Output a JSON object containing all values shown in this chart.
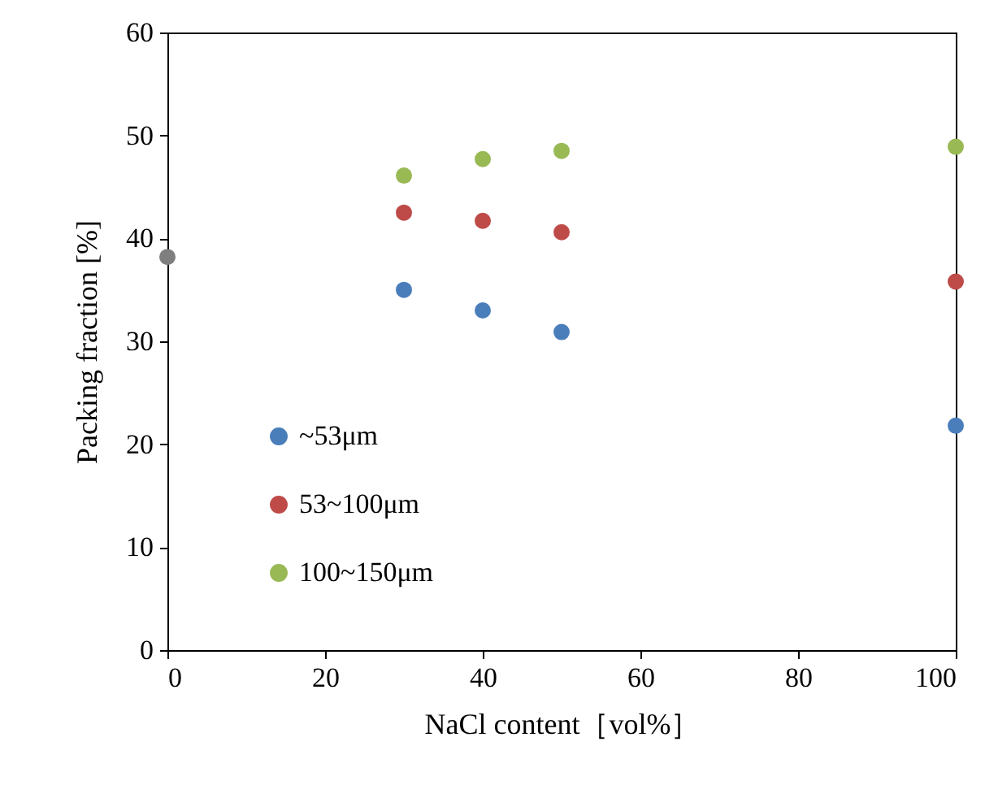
{
  "chart_data": {
    "type": "scatter",
    "xlabel": "NaCl content［vol%］",
    "ylabel": "Packing fraction [%]",
    "xlim": [
      0,
      100
    ],
    "xticks": [
      0,
      20,
      40,
      60,
      80,
      100
    ],
    "ylim": [
      0,
      60
    ],
    "yticks": [
      0,
      10,
      20,
      30,
      40,
      50,
      60
    ],
    "series": [
      {
        "name": "~53μm",
        "color": "#4a7ebb",
        "x": [
          30,
          40,
          50,
          100
        ],
        "values": [
          35.0,
          33.0,
          30.9,
          21.8
        ]
      },
      {
        "name": "53~100μm",
        "color": "#be4b48",
        "x": [
          30,
          40,
          50,
          100
        ],
        "values": [
          42.5,
          41.7,
          40.6,
          35.8
        ]
      },
      {
        "name": "100~150μm",
        "color": "#98b954",
        "x": [
          30,
          40,
          50,
          100
        ],
        "values": [
          46.1,
          47.7,
          48.5,
          48.9
        ]
      },
      {
        "color": "#7f7f7f",
        "x": [
          0
        ],
        "values": [
          38.2
        ]
      }
    ],
    "marker": "circle",
    "legend": "bottom left",
    "grid": false
  }
}
